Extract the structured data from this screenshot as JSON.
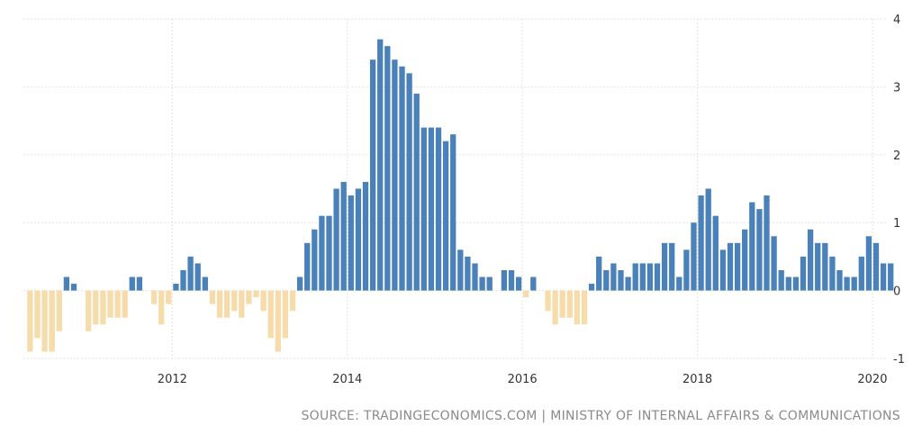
{
  "chart_data": {
    "type": "bar",
    "start_month": "2010-05",
    "values": [
      -0.9,
      -0.7,
      -0.9,
      -0.9,
      -0.6,
      0.2,
      0.1,
      0.0,
      -0.6,
      -0.5,
      -0.5,
      -0.4,
      -0.4,
      -0.4,
      0.2,
      0.2,
      0.0,
      -0.2,
      -0.5,
      -0.2,
      0.1,
      0.3,
      0.5,
      0.4,
      0.2,
      -0.2,
      -0.4,
      -0.4,
      -0.3,
      -0.4,
      -0.2,
      -0.1,
      -0.3,
      -0.7,
      -0.9,
      -0.7,
      -0.3,
      0.2,
      0.7,
      0.9,
      1.1,
      1.1,
      1.5,
      1.6,
      1.4,
      1.5,
      1.6,
      3.4,
      3.7,
      3.6,
      3.4,
      3.3,
      3.2,
      2.9,
      2.4,
      2.4,
      2.4,
      2.2,
      2.3,
      0.6,
      0.5,
      0.4,
      0.2,
      0.2,
      0.0,
      0.3,
      0.3,
      0.2,
      -0.1,
      0.2,
      0.0,
      -0.3,
      -0.5,
      -0.4,
      -0.4,
      -0.5,
      -0.5,
      0.1,
      0.5,
      0.3,
      0.4,
      0.3,
      0.2,
      0.4,
      0.4,
      0.4,
      0.4,
      0.7,
      0.7,
      0.2,
      0.6,
      1.0,
      1.4,
      1.5,
      1.1,
      0.6,
      0.7,
      0.7,
      0.9,
      1.3,
      1.2,
      1.4,
      0.8,
      0.3,
      0.2,
      0.2,
      0.5,
      0.9,
      0.7,
      0.7,
      0.5,
      0.3,
      0.2,
      0.2,
      0.5,
      0.8,
      0.7,
      0.4,
      0.4
    ],
    "ylim": [
      -1,
      4
    ],
    "y_ticks": [
      "-1",
      "0",
      "1",
      "2",
      "3",
      "4"
    ],
    "x_ticks": [
      "2012",
      "2014",
      "2016",
      "2018",
      "2020"
    ],
    "grid": true,
    "colors": {
      "positive": "#4a81b8",
      "negative": "#f5dcaa"
    }
  },
  "source_text": "SOURCE: TRADINGECONOMICS.COM | MINISTRY OF INTERNAL AFFAIRS & COMMUNICATIONS"
}
